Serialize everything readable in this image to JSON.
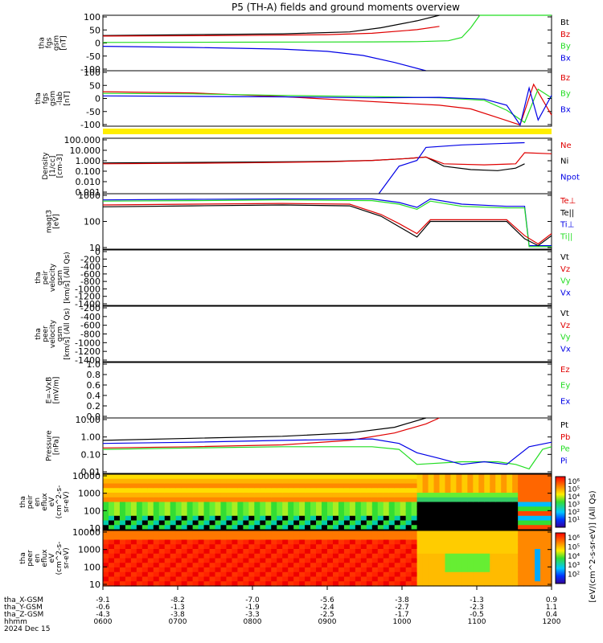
{
  "title": "P5 (TH-A) fields and ground moments overview",
  "colors": {
    "black": "#000000",
    "red": "#e00000",
    "green": "#22dd22",
    "blue": "#0000e6",
    "yellow": "#ffee00"
  },
  "chart_data": [
    {
      "type": "line",
      "id": "fgs",
      "ylabel": [
        "tha",
        "fgs",
        "gsm",
        "[nT]"
      ],
      "yticks": [
        "100",
        "50",
        "0",
        "-50",
        "-100"
      ],
      "ylim": [
        -100,
        100
      ],
      "legend": [
        {
          "name": "Bt",
          "color": "black"
        },
        {
          "name": "Bz",
          "color": "red"
        },
        {
          "name": "By",
          "color": "green"
        },
        {
          "name": "Bx",
          "color": "blue"
        }
      ],
      "series": [
        {
          "name": "Bt",
          "color": "black",
          "x": [
            0,
            0.2,
            0.4,
            0.55,
            0.62,
            0.7,
            0.75
          ],
          "y": [
            27,
            30,
            33,
            40,
            55,
            80,
            100
          ]
        },
        {
          "name": "Bz",
          "color": "red",
          "x": [
            0,
            0.3,
            0.5,
            0.6,
            0.7,
            0.75
          ],
          "y": [
            25,
            27,
            30,
            35,
            48,
            60
          ]
        },
        {
          "name": "By",
          "color": "green",
          "x": [
            0,
            0.3,
            0.6,
            0.7,
            0.77,
            0.8,
            0.82,
            0.84,
            0.86,
            0.88,
            0.9,
            1.0
          ],
          "y": [
            2,
            3,
            4,
            5,
            8,
            20,
            55,
            100,
            100,
            100,
            100,
            100
          ]
        },
        {
          "name": "Bx",
          "color": "blue",
          "x": [
            0,
            0.2,
            0.4,
            0.5,
            0.58,
            0.65,
            0.72
          ],
          "y": [
            -12,
            -16,
            -22,
            -30,
            -45,
            -70,
            -100
          ]
        }
      ]
    },
    {
      "type": "line",
      "id": "fgs_ecl",
      "ylabel": [
        "tha",
        "fgs",
        "gsm",
        "-lab",
        "[nT]"
      ],
      "yticks": [
        "100",
        "50",
        "0",
        "-50",
        "-100"
      ],
      "ylim": [
        -125,
        100
      ],
      "legend": [
        {
          "name": "Bz",
          "color": "red"
        },
        {
          "name": "By",
          "color": "green"
        },
        {
          "name": "Bx",
          "color": "blue"
        }
      ],
      "series": [
        {
          "name": "Bz",
          "color": "red",
          "x": [
            0,
            0.2,
            0.4,
            0.55,
            0.65,
            0.75,
            0.82,
            0.88,
            0.93,
            0.96,
            1.0
          ],
          "y": [
            15,
            10,
            -5,
            -20,
            -30,
            -40,
            -55,
            -90,
            -120,
            45,
            -80
          ]
        },
        {
          "name": "By",
          "color": "green",
          "x": [
            0,
            0.2,
            0.4,
            0.6,
            0.75,
            0.85,
            0.9,
            0.94,
            0.97,
            1.0
          ],
          "y": [
            8,
            6,
            0,
            -5,
            -10,
            -20,
            -60,
            -110,
            25,
            -10
          ]
        },
        {
          "name": "Bx",
          "color": "blue",
          "x": [
            0,
            0.2,
            0.4,
            0.6,
            0.75,
            0.85,
            0.9,
            0.93,
            0.95,
            0.97,
            1.0
          ],
          "y": [
            -2,
            -4,
            -6,
            -10,
            -8,
            -15,
            -40,
            -120,
            30,
            -100,
            0
          ]
        }
      ]
    },
    {
      "type": "line",
      "id": "density",
      "ylabel": [
        "Density",
        "[1/cc]",
        "[cm-3]"
      ],
      "yticks": [
        "100.000",
        "10.000",
        "1.000",
        "0.100",
        "0.010",
        "0.001"
      ],
      "ylim": [
        0.001,
        100
      ],
      "yscale": "log",
      "legend": [
        {
          "name": "Ne",
          "color": "red"
        },
        {
          "name": "Ni",
          "color": "black"
        },
        {
          "name": "Npot",
          "color": "blue"
        }
      ],
      "series": [
        {
          "name": "Ni",
          "color": "black",
          "x": [
            0,
            0.3,
            0.5,
            0.6,
            0.68,
            0.72,
            0.76,
            0.82,
            0.88,
            0.92,
            0.94
          ],
          "y": [
            0.6,
            0.7,
            0.8,
            1.0,
            1.5,
            2.0,
            0.3,
            0.15,
            0.12,
            0.2,
            0.5
          ]
        },
        {
          "name": "Ne",
          "color": "red",
          "x": [
            0,
            0.3,
            0.5,
            0.6,
            0.68,
            0.72,
            0.76,
            0.85,
            0.92,
            0.94,
            1.0
          ],
          "y": [
            0.5,
            0.6,
            0.75,
            1.0,
            1.5,
            2.0,
            0.5,
            0.4,
            0.5,
            5,
            4
          ]
        },
        {
          "name": "Npot",
          "color": "blue",
          "x": [
            0.615,
            0.66,
            0.7,
            0.72,
            0.8,
            0.9,
            0.94
          ],
          "y": [
            0.001,
            0.3,
            1.0,
            15,
            25,
            35,
            40
          ]
        }
      ]
    },
    {
      "type": "line",
      "id": "temp",
      "ylabel": [
        "magt3",
        "[eV]"
      ],
      "yticks": [
        "1000",
        "100",
        "10"
      ],
      "ylim": [
        5,
        8000
      ],
      "yscale": "log",
      "legend": [
        {
          "name": "Te⊥",
          "color": "red"
        },
        {
          "name": "Te||",
          "color": "black"
        },
        {
          "name": "Ti⊥",
          "color": "blue"
        },
        {
          "name": "Ti||",
          "color": "green"
        }
      ],
      "series": [
        {
          "name": "Ti⊥",
          "color": "blue",
          "x": [
            0,
            0.2,
            0.4,
            0.6,
            0.66,
            0.7,
            0.73,
            0.8,
            0.9,
            0.94,
            0.95,
            1.0
          ],
          "y": [
            3500,
            3800,
            4000,
            4000,
            2500,
            1300,
            4000,
            2000,
            1500,
            1500,
            8,
            8
          ]
        },
        {
          "name": "Ti||",
          "color": "green",
          "x": [
            0,
            0.2,
            0.4,
            0.6,
            0.66,
            0.7,
            0.73,
            0.8,
            0.9,
            0.94,
            0.95,
            1.0
          ],
          "y": [
            3000,
            3200,
            3500,
            3200,
            2000,
            1000,
            3000,
            1500,
            1200,
            1200,
            7,
            7
          ]
        },
        {
          "name": "Te⊥",
          "color": "red",
          "x": [
            0,
            0.2,
            0.4,
            0.55,
            0.62,
            0.66,
            0.7,
            0.73,
            0.8,
            0.9,
            0.94,
            0.97,
            1.0
          ],
          "y": [
            1800,
            2000,
            2200,
            2000,
            500,
            150,
            40,
            250,
            250,
            250,
            30,
            10,
            40
          ]
        },
        {
          "name": "Te||",
          "color": "black",
          "x": [
            0,
            0.2,
            0.4,
            0.55,
            0.62,
            0.66,
            0.7,
            0.73,
            0.8,
            0.9,
            0.94,
            0.97,
            1.0
          ],
          "y": [
            1400,
            1600,
            1800,
            1600,
            400,
            100,
            25,
            200,
            200,
            200,
            20,
            8,
            30
          ]
        }
      ]
    },
    {
      "type": "line",
      "id": "peir_v",
      "ylabel": [
        "tha",
        "peir",
        "velocity",
        "gsm",
        "[km/s] (All Qs)"
      ],
      "yticks": [
        "0",
        "-200",
        "-400",
        "-600",
        "-800",
        "-1000",
        "-1200",
        "-1400"
      ],
      "ylim": [
        -1400,
        0
      ],
      "legend": [
        {
          "name": "Vt",
          "color": "black"
        },
        {
          "name": "Vz",
          "color": "red"
        },
        {
          "name": "Vy",
          "color": "green"
        },
        {
          "name": "Vx",
          "color": "blue"
        }
      ],
      "series": []
    },
    {
      "type": "line",
      "id": "peer_v",
      "ylabel": [
        "tha",
        "peer",
        "velocity",
        "gsm",
        "[km/s] (All Qs)"
      ],
      "yticks": [
        "-200",
        "-400",
        "-600",
        "-800",
        "-1000",
        "-1200",
        "-1400"
      ],
      "ylim": [
        -1450,
        -100
      ],
      "legend": [
        {
          "name": "Vt",
          "color": "black"
        },
        {
          "name": "Vz",
          "color": "red"
        },
        {
          "name": "Vy",
          "color": "green"
        },
        {
          "name": "Vx",
          "color": "blue"
        }
      ],
      "series": []
    },
    {
      "type": "line",
      "id": "exb",
      "ylabel": [
        "E=-VxB",
        "[mV/m]"
      ],
      "yticks": [
        "1.0",
        "0.8",
        "0.6",
        "0.4",
        "0.2",
        "0.0"
      ],
      "ylim": [
        0,
        1
      ],
      "legend": [
        {
          "name": "Ez",
          "color": "red"
        },
        {
          "name": "Ey",
          "color": "green"
        },
        {
          "name": "Ex",
          "color": "blue"
        }
      ],
      "series": []
    },
    {
      "type": "line",
      "id": "pressure",
      "ylabel": [
        "Pressure",
        "[nPa]"
      ],
      "yticks": [
        "10.00",
        "1.00",
        "0.10",
        "0.01"
      ],
      "ylim": [
        0.005,
        25
      ],
      "yscale": "log",
      "legend": [
        {
          "name": "Pt",
          "color": "black"
        },
        {
          "name": "Pb",
          "color": "red"
        },
        {
          "name": "Pe",
          "color": "green"
        },
        {
          "name": "Pi",
          "color": "blue"
        }
      ],
      "series": [
        {
          "name": "Pt",
          "color": "black",
          "x": [
            0,
            0.2,
            0.4,
            0.55,
            0.65,
            0.72
          ],
          "y": [
            0.8,
            1.1,
            1.5,
            2.5,
            6,
            25
          ]
        },
        {
          "name": "Pb",
          "color": "red",
          "x": [
            0,
            0.2,
            0.4,
            0.55,
            0.65,
            0.72,
            0.75
          ],
          "y": [
            0.25,
            0.3,
            0.4,
            0.8,
            2.5,
            10,
            25
          ]
        },
        {
          "name": "Pe",
          "color": "green",
          "x": [
            0,
            0.2,
            0.4,
            0.6,
            0.66,
            0.7,
            0.8,
            0.88,
            0.92,
            0.95,
            0.98,
            1.0
          ],
          "y": [
            0.2,
            0.25,
            0.3,
            0.3,
            0.2,
            0.02,
            0.03,
            0.03,
            0.02,
            0.01,
            0.2,
            0.3
          ]
        },
        {
          "name": "Pi",
          "color": "blue",
          "x": [
            0,
            0.2,
            0.4,
            0.6,
            0.66,
            0.7,
            0.75,
            0.8,
            0.85,
            0.9,
            0.95,
            1.0
          ],
          "y": [
            0.5,
            0.6,
            0.8,
            1.0,
            0.5,
            0.12,
            0.05,
            0.02,
            0.03,
            0.02,
            0.3,
            0.6
          ]
        }
      ]
    },
    {
      "type": "heatmap",
      "id": "peir_en",
      "ylabel": [
        "tha",
        "peir",
        "en",
        "eflux",
        "eV",
        "(cm^2-s-",
        "sr-eV)"
      ],
      "yticks": [
        "10000",
        "1000",
        "100",
        "10"
      ],
      "yscale": "log",
      "colorbar_ticks": [
        "10⁶",
        "10⁵",
        "10⁴",
        "10³",
        "10²",
        "10¹"
      ]
    },
    {
      "type": "heatmap",
      "id": "peer_en",
      "ylabel": [
        "tha",
        "peer",
        "en",
        "eflux",
        "eV",
        "(cm^2-s-",
        "sr-eV)"
      ],
      "yticks": [
        "10000",
        "1000",
        "100",
        "10"
      ],
      "yscale": "log",
      "colorbar_ticks": [
        "10⁶",
        "10⁵",
        "10⁴",
        "10³",
        "10²"
      ],
      "colorbar_label": "[eV/(cm^2-s-sr-eV)] (All Qs)"
    }
  ],
  "xaxis": {
    "rows": [
      {
        "label": "tha_X-GSM",
        "values": [
          "-9.1",
          "-8.2",
          "-7.0",
          "-5.6",
          "-3.8",
          "-1.3",
          "0.9"
        ]
      },
      {
        "label": "tha_Y-GSM",
        "values": [
          "-0.6",
          "-1.3",
          "-1.9",
          "-2.4",
          "-2.7",
          "-2.3",
          "1.1"
        ]
      },
      {
        "label": "tha_Z-GSM",
        "values": [
          "-4.3",
          "-3.8",
          "-3.3",
          "-2.5",
          "-1.7",
          "-0.5",
          "0.4"
        ]
      },
      {
        "label": "hhmm",
        "values": [
          "0600",
          "0700",
          "0800",
          "0900",
          "1000",
          "1100",
          "1200"
        ]
      }
    ],
    "date": "2024 Dec 15"
  }
}
